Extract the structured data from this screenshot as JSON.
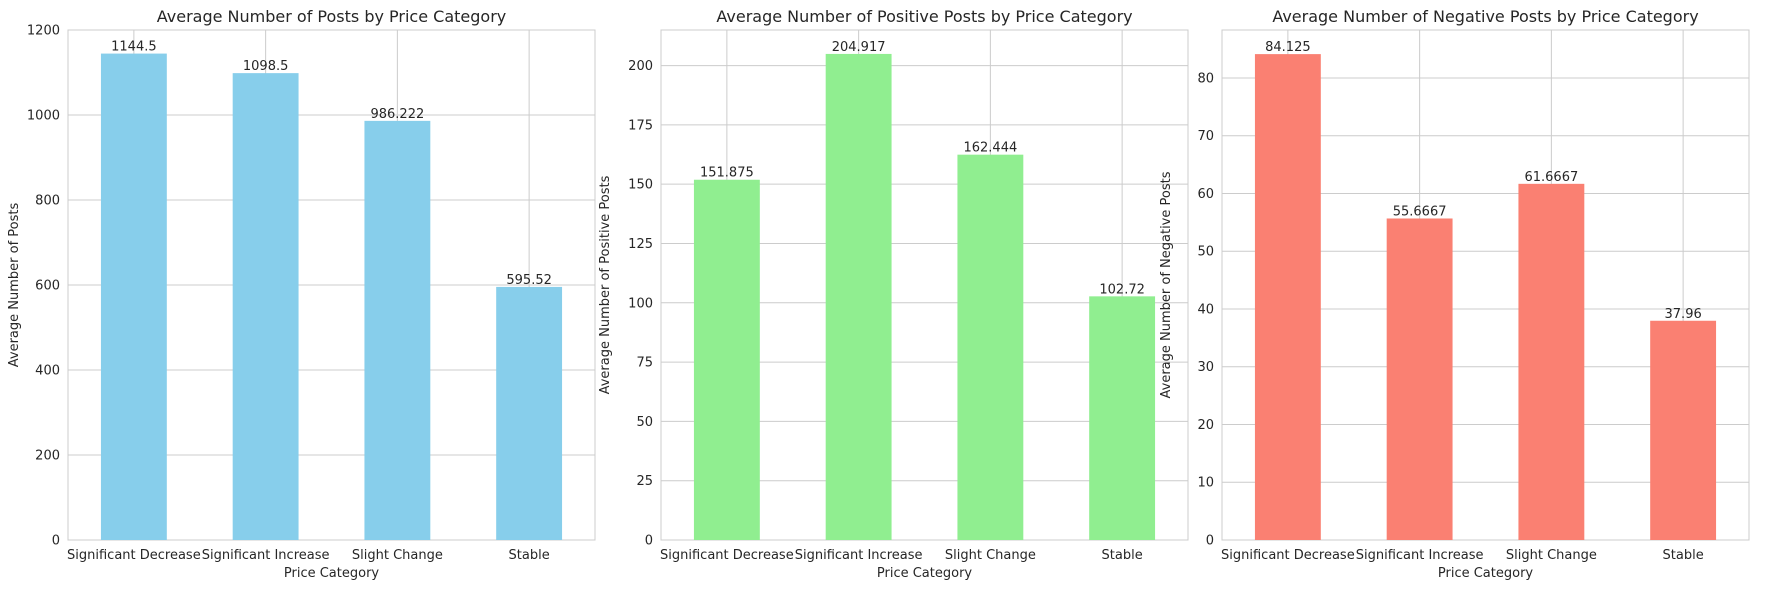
{
  "chart_data": [
    {
      "type": "bar",
      "title": "Average Number of Posts by Price Category",
      "xlabel": "Price Category",
      "ylabel": "Average Number of Posts",
      "categories": [
        "Significant Decrease",
        "Significant Increase",
        "Slight Change",
        "Stable"
      ],
      "values": [
        1144.5,
        1098.5,
        986.222,
        595.52
      ],
      "data_labels": [
        "1144.5",
        "1098.5",
        "986.222",
        "595.52"
      ],
      "ylim": [
        0,
        1200
      ],
      "yticks": [
        0,
        200,
        400,
        600,
        800,
        1000,
        1200
      ],
      "color": "#87ceeb",
      "grid": true
    },
    {
      "type": "bar",
      "title": "Average Number of Positive Posts by Price Category",
      "xlabel": "Price Category",
      "ylabel": "Average Number of Positive Posts",
      "categories": [
        "Significant Decrease",
        "Significant Increase",
        "Slight Change",
        "Stable"
      ],
      "values": [
        151.875,
        204.917,
        162.444,
        102.72
      ],
      "data_labels": [
        "151.875",
        "204.917",
        "162.444",
        "102.72"
      ],
      "ylim": [
        0,
        215
      ],
      "yticks": [
        0,
        25,
        50,
        75,
        100,
        125,
        150,
        175,
        200
      ],
      "color": "#90ee90",
      "grid": true
    },
    {
      "type": "bar",
      "title": "Average Number of Negative Posts by Price Category",
      "xlabel": "Price Category",
      "ylabel": "Average Number of Negative Posts",
      "categories": [
        "Significant Decrease",
        "Significant Increase",
        "Slight Change",
        "Stable"
      ],
      "values": [
        84.125,
        55.6667,
        61.6667,
        37.96
      ],
      "data_labels": [
        "84.125",
        "55.6667",
        "61.6667",
        "37.96"
      ],
      "ylim": [
        0,
        88.3
      ],
      "yticks": [
        0,
        10,
        20,
        30,
        40,
        50,
        60,
        70,
        80
      ],
      "color": "#fa8072",
      "grid": true
    }
  ]
}
